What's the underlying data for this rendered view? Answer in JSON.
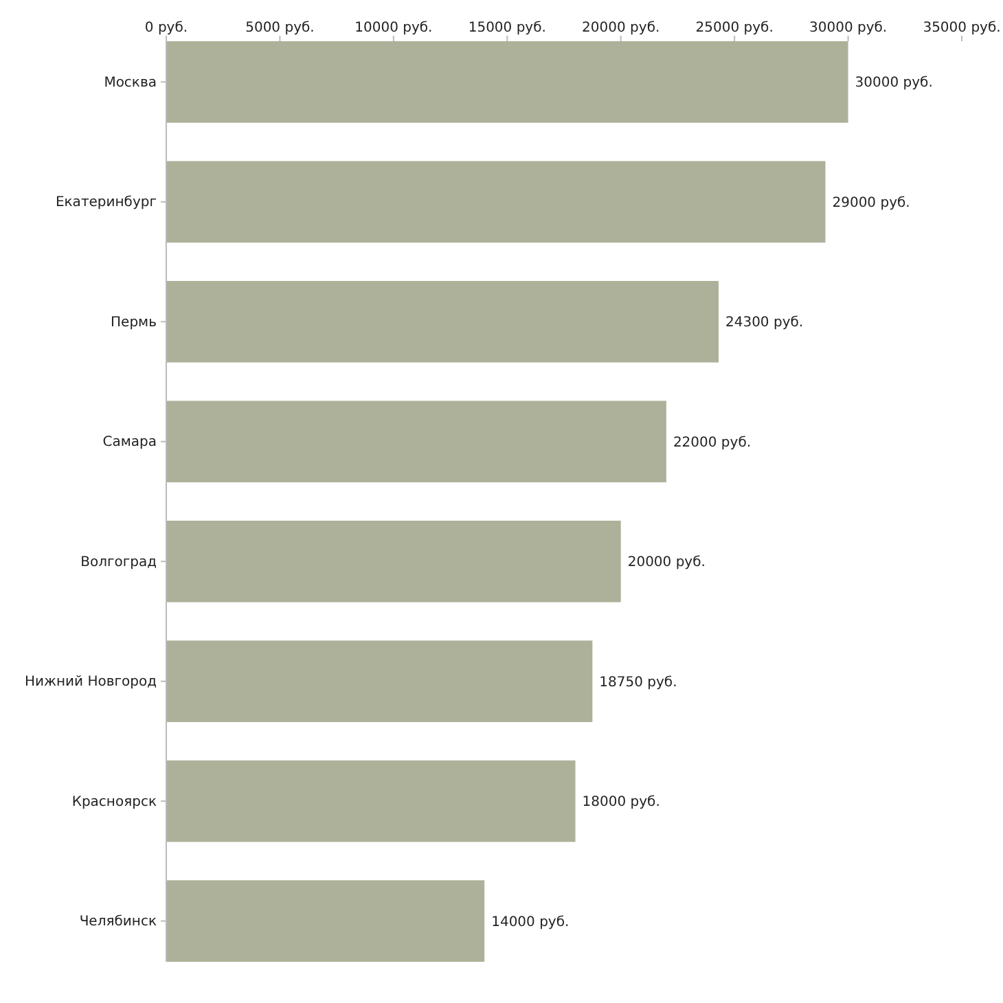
{
  "chart_data": {
    "type": "bar",
    "orientation": "horizontal",
    "categories": [
      "Москва",
      "Екатеринбург",
      "Пермь",
      "Самара",
      "Волгоград",
      "Нижний Новгород",
      "Красноярск",
      "Челябинск"
    ],
    "values": [
      30000,
      29000,
      24300,
      22000,
      20000,
      18750,
      18000,
      14000
    ],
    "value_labels": [
      "30000 руб.",
      "29000 руб.",
      "24300 руб.",
      "22000 руб.",
      "20000 руб.",
      "18750 руб.",
      "18000 руб.",
      "14000 руб."
    ],
    "color": "#adb199",
    "xlim": [
      0,
      35000
    ],
    "xticks": [
      {
        "value": 0,
        "label": "0 руб."
      },
      {
        "value": 5000,
        "label": "5000 руб."
      },
      {
        "value": 10000,
        "label": "10000 руб."
      },
      {
        "value": 15000,
        "label": "15000 руб."
      },
      {
        "value": 20000,
        "label": "20000 руб."
      },
      {
        "value": 25000,
        "label": "25000 руб."
      },
      {
        "value": 30000,
        "label": "30000 руб."
      },
      {
        "value": 35000,
        "label": "35000 руб."
      }
    ],
    "grid": false
  }
}
